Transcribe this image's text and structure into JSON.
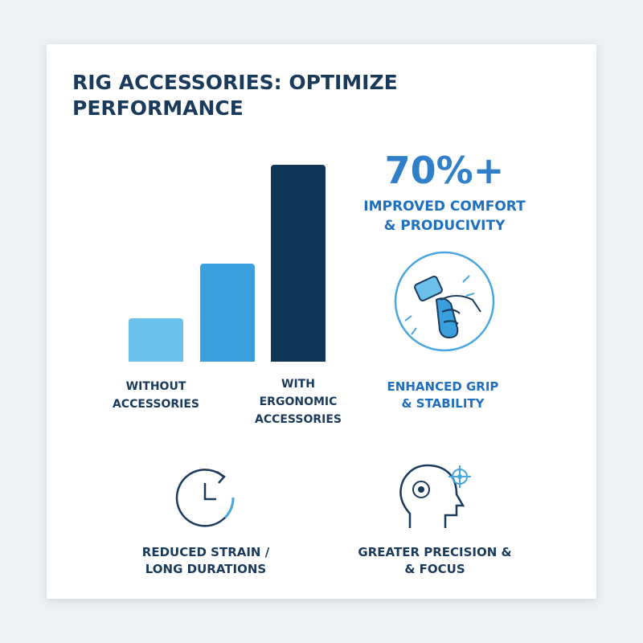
{
  "chart_data": {
    "type": "bar",
    "title": "RIG ACCESSORIES: OPTIMIZE PERFORMANCE",
    "categories": [
      "WITHOUT ACCESSORIES",
      null,
      "WITH ERGONOMIC ACCESSORIES"
    ],
    "values": [
      22,
      50,
      100
    ],
    "colors": [
      "#6cc0ec",
      "#3a9fdc",
      "#0f3557"
    ],
    "ylim": [
      0,
      100
    ]
  },
  "stat": {
    "value": "70%+",
    "caption": "IMPROVED COMFORT & PRODUCIVITY"
  },
  "features": [
    "ENHANCED GRIP & STABILITY",
    "REDUCED STRAIN / LONG DURATIONS",
    "GREATER PRECISION & & FOCUS"
  ]
}
